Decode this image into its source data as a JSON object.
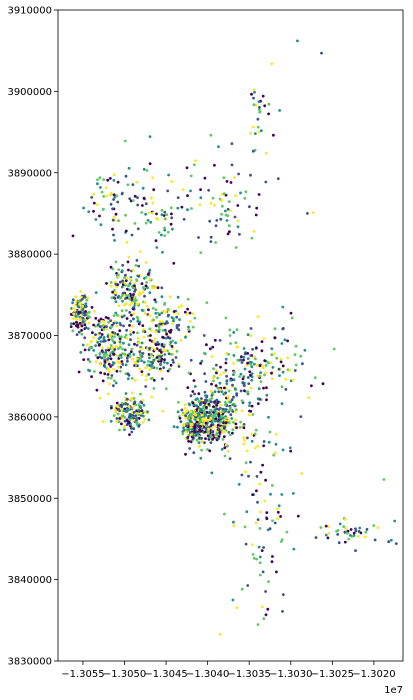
{
  "chart_data": {
    "type": "scatter",
    "title": "",
    "xlabel": "",
    "ylabel": "",
    "grid": false,
    "legend": "none",
    "x_offset_label": "1e7",
    "xlim": [
      -13058000,
      -13016500
    ],
    "ylim": [
      3830000,
      3910000
    ],
    "x_ticks": [
      {
        "value": -13055000,
        "label": "−1.3055"
      },
      {
        "value": -13050000,
        "label": "−1.3050"
      },
      {
        "value": -13045000,
        "label": "−1.3045"
      },
      {
        "value": -13040000,
        "label": "−1.3040"
      },
      {
        "value": -13035000,
        "label": "−1.3035"
      },
      {
        "value": -13030000,
        "label": "−1.3030"
      },
      {
        "value": -13025000,
        "label": "−1.3025"
      },
      {
        "value": -13020000,
        "label": "−1.3020"
      }
    ],
    "y_ticks": [
      {
        "value": 3830000,
        "label": "3830000"
      },
      {
        "value": 3840000,
        "label": "3840000"
      },
      {
        "value": 3850000,
        "label": "3850000"
      },
      {
        "value": 3860000,
        "label": "3860000"
      },
      {
        "value": 3870000,
        "label": "3870000"
      },
      {
        "value": 3880000,
        "label": "3880000"
      },
      {
        "value": 3890000,
        "label": "3890000"
      },
      {
        "value": 3900000,
        "label": "3900000"
      },
      {
        "value": 3910000,
        "label": "3910000"
      }
    ],
    "colormap": [
      "#440154",
      "#3b528b",
      "#21918c",
      "#5ec962",
      "#fde725"
    ],
    "clusters": [
      {
        "cx": -13039800,
        "cy": 3860000,
        "sx": 1600,
        "sy": 1700,
        "n": 420
      },
      {
        "cx": -13041500,
        "cy": 3859000,
        "sx": 800,
        "sy": 1000,
        "n": 120
      },
      {
        "cx": -13049300,
        "cy": 3860400,
        "sx": 1000,
        "sy": 1100,
        "n": 150
      },
      {
        "cx": -13051800,
        "cy": 3868500,
        "sx": 1600,
        "sy": 2500,
        "n": 240
      },
      {
        "cx": -13055200,
        "cy": 3873000,
        "sx": 600,
        "sy": 1200,
        "n": 110
      },
      {
        "cx": -13049200,
        "cy": 3875500,
        "sx": 1500,
        "sy": 1900,
        "n": 170
      },
      {
        "cx": -13046300,
        "cy": 3867300,
        "sx": 1500,
        "sy": 1600,
        "n": 140
      },
      {
        "cx": -13044500,
        "cy": 3871500,
        "sx": 1700,
        "sy": 1700,
        "n": 90
      },
      {
        "cx": -13036500,
        "cy": 3865000,
        "sx": 2400,
        "sy": 2800,
        "n": 160
      },
      {
        "cx": -13031500,
        "cy": 3867500,
        "sx": 2600,
        "sy": 2600,
        "n": 65
      },
      {
        "cx": -13046500,
        "cy": 3885500,
        "sx": 3200,
        "sy": 3200,
        "n": 95
      },
      {
        "cx": -13037500,
        "cy": 3887500,
        "sx": 2200,
        "sy": 3300,
        "n": 60
      },
      {
        "cx": -13033800,
        "cy": 3897500,
        "sx": 800,
        "sy": 2200,
        "n": 28
      },
      {
        "cx": -13051800,
        "cy": 3887000,
        "sx": 1000,
        "sy": 2500,
        "n": 42
      },
      {
        "cx": -13033000,
        "cy": 3847000,
        "sx": 2200,
        "sy": 2200,
        "n": 42
      },
      {
        "cx": -13022500,
        "cy": 3845800,
        "sx": 2200,
        "sy": 900,
        "n": 44
      },
      {
        "cx": -13033200,
        "cy": 3840000,
        "sx": 1800,
        "sy": 2300,
        "n": 22
      },
      {
        "cx": -13034500,
        "cy": 3856000,
        "sx": 2400,
        "sy": 2600,
        "n": 42
      }
    ],
    "outliers": [
      {
        "x": -13029200,
        "y": 3906200
      },
      {
        "x": -13026300,
        "y": 3904700
      },
      {
        "x": -13038500,
        "y": 3833300
      },
      {
        "x": -13017500,
        "y": 3847200
      },
      {
        "x": -13018800,
        "y": 3852300
      },
      {
        "x": -13027300,
        "y": 3885100
      },
      {
        "x": -13028000,
        "y": 3885000
      },
      {
        "x": -13031000,
        "y": 3836100
      }
    ]
  }
}
